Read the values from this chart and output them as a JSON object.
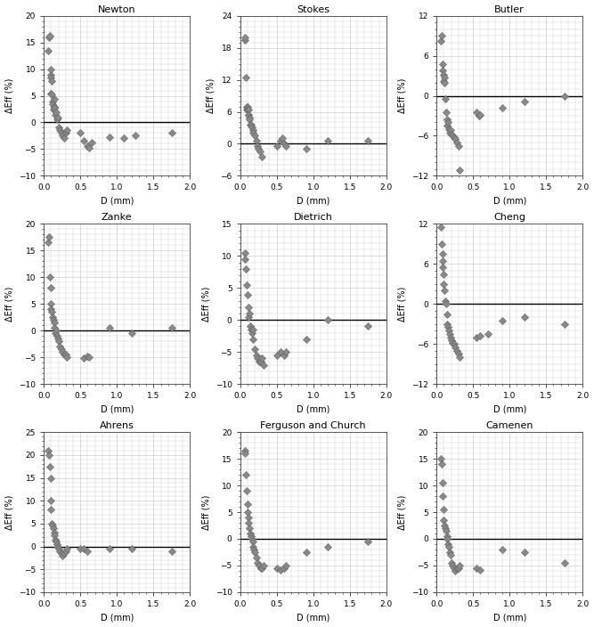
{
  "subplots": [
    {
      "title": "Newton",
      "ylim": [
        -10,
        20
      ],
      "yticks": [
        -10,
        -5,
        0,
        5,
        10,
        15,
        20
      ],
      "x": [
        0.06,
        0.07,
        0.08,
        0.09,
        0.09,
        0.1,
        0.1,
        0.11,
        0.11,
        0.12,
        0.12,
        0.13,
        0.14,
        0.15,
        0.15,
        0.16,
        0.17,
        0.18,
        0.19,
        0.2,
        0.22,
        0.24,
        0.26,
        0.28,
        0.3,
        0.32,
        0.5,
        0.55,
        0.6,
        0.62,
        0.65,
        0.9,
        1.1,
        1.25,
        1.75
      ],
      "y": [
        13.5,
        16.0,
        16.3,
        9.0,
        10.0,
        8.5,
        5.5,
        5.3,
        7.8,
        4.0,
        3.5,
        2.5,
        3.0,
        2.8,
        4.5,
        1.5,
        2.0,
        0.5,
        1.0,
        -1.0,
        -1.5,
        -2.0,
        -2.5,
        -3.0,
        -2.0,
        -1.5,
        -2.0,
        -3.5,
        -4.5,
        -4.8,
        -3.8,
        -2.8,
        -3.0,
        -2.5,
        -2.0
      ]
    },
    {
      "title": "Stokes",
      "ylim": [
        -6,
        24
      ],
      "yticks": [
        -6,
        0,
        6,
        12,
        18,
        24
      ],
      "x": [
        0.06,
        0.07,
        0.08,
        0.09,
        0.09,
        0.1,
        0.1,
        0.11,
        0.11,
        0.12,
        0.13,
        0.13,
        0.14,
        0.15,
        0.16,
        0.17,
        0.18,
        0.2,
        0.22,
        0.24,
        0.25,
        0.27,
        0.3,
        0.5,
        0.55,
        0.58,
        0.6,
        0.62,
        0.9,
        1.2,
        1.75
      ],
      "y": [
        19.5,
        20.0,
        12.5,
        7.0,
        6.5,
        7.0,
        6.5,
        6.5,
        5.5,
        5.5,
        5.0,
        4.5,
        3.5,
        3.5,
        3.0,
        2.5,
        2.0,
        1.5,
        0.5,
        -0.5,
        -1.0,
        -1.5,
        -2.5,
        -0.5,
        0.5,
        1.0,
        0.0,
        -0.5,
        -1.0,
        0.5,
        0.5
      ]
    },
    {
      "title": "Butler",
      "ylim": [
        -12,
        12
      ],
      "yticks": [
        -12,
        -6,
        0,
        6,
        12
      ],
      "x": [
        0.06,
        0.07,
        0.08,
        0.09,
        0.1,
        0.1,
        0.11,
        0.11,
        0.12,
        0.13,
        0.14,
        0.15,
        0.16,
        0.17,
        0.18,
        0.19,
        0.2,
        0.22,
        0.24,
        0.26,
        0.28,
        0.3,
        0.32,
        0.55,
        0.58,
        0.6,
        0.9,
        1.2,
        1.75
      ],
      "y": [
        8.2,
        9.0,
        4.8,
        3.8,
        2.2,
        3.2,
        2.8,
        2.0,
        -0.5,
        -2.5,
        -3.5,
        -4.5,
        -4.0,
        -5.0,
        -5.5,
        -5.2,
        -5.8,
        -6.0,
        -6.2,
        -6.5,
        -7.0,
        -7.5,
        -11.2,
        -2.5,
        -3.0,
        -2.8,
        -1.8,
        -0.8,
        0.0
      ]
    },
    {
      "title": "Zanke",
      "ylim": [
        -10,
        20
      ],
      "yticks": [
        -10,
        -5,
        0,
        5,
        10,
        15,
        20
      ],
      "x": [
        0.06,
        0.07,
        0.08,
        0.09,
        0.1,
        0.1,
        0.11,
        0.12,
        0.13,
        0.14,
        0.15,
        0.16,
        0.17,
        0.18,
        0.19,
        0.2,
        0.22,
        0.24,
        0.26,
        0.28,
        0.3,
        0.32,
        0.55,
        0.6,
        0.62,
        0.9,
        1.2,
        1.75
      ],
      "y": [
        16.5,
        17.5,
        10.0,
        8.0,
        5.0,
        4.0,
        3.5,
        2.5,
        2.0,
        1.5,
        0.5,
        -0.5,
        0.0,
        -1.0,
        -1.5,
        -2.0,
        -3.0,
        -3.5,
        -4.0,
        -4.5,
        -4.5,
        -5.0,
        -5.2,
        -4.8,
        -5.0,
        0.5,
        -0.5,
        0.5
      ]
    },
    {
      "title": "Dietrich",
      "ylim": [
        -10,
        15
      ],
      "yticks": [
        -10,
        -5,
        0,
        5,
        10,
        15
      ],
      "x": [
        0.06,
        0.07,
        0.08,
        0.09,
        0.1,
        0.11,
        0.12,
        0.13,
        0.14,
        0.15,
        0.16,
        0.17,
        0.18,
        0.2,
        0.22,
        0.24,
        0.26,
        0.28,
        0.3,
        0.32,
        0.5,
        0.55,
        0.6,
        0.62,
        0.9,
        1.2,
        1.75
      ],
      "y": [
        10.5,
        9.5,
        8.0,
        5.5,
        4.0,
        2.0,
        0.5,
        1.0,
        -1.0,
        -1.5,
        -2.0,
        -1.5,
        -3.0,
        -4.5,
        -5.5,
        -6.0,
        -6.5,
        -6.5,
        -6.0,
        -7.0,
        -5.5,
        -5.0,
        -5.5,
        -5.0,
        -3.0,
        0.0,
        -1.0
      ]
    },
    {
      "title": "Cheng",
      "ylim": [
        -12,
        12
      ],
      "yticks": [
        -12,
        -6,
        0,
        6,
        12
      ],
      "x": [
        0.06,
        0.07,
        0.08,
        0.09,
        0.09,
        0.1,
        0.1,
        0.11,
        0.12,
        0.13,
        0.14,
        0.15,
        0.16,
        0.17,
        0.18,
        0.19,
        0.2,
        0.22,
        0.24,
        0.26,
        0.28,
        0.3,
        0.32,
        0.55,
        0.6,
        0.7,
        0.9,
        1.2,
        1.75
      ],
      "y": [
        11.5,
        9.0,
        7.5,
        6.5,
        5.5,
        4.5,
        3.0,
        2.0,
        0.5,
        0.0,
        -1.5,
        -3.0,
        -3.5,
        -4.0,
        -4.5,
        -5.0,
        -5.5,
        -5.8,
        -6.0,
        -6.5,
        -7.0,
        -7.5,
        -8.0,
        -5.0,
        -4.8,
        -4.5,
        -2.5,
        -2.0,
        -3.0
      ]
    },
    {
      "title": "Ahrens",
      "ylim": [
        -10,
        25
      ],
      "yticks": [
        -10,
        -5,
        0,
        5,
        10,
        15,
        20,
        25
      ],
      "x": [
        0.06,
        0.07,
        0.08,
        0.09,
        0.1,
        0.1,
        0.11,
        0.12,
        0.13,
        0.14,
        0.15,
        0.16,
        0.17,
        0.18,
        0.19,
        0.2,
        0.22,
        0.24,
        0.26,
        0.28,
        0.3,
        0.32,
        0.5,
        0.55,
        0.6,
        0.9,
        1.2,
        1.75
      ],
      "y": [
        21.0,
        20.0,
        17.5,
        15.0,
        10.0,
        8.0,
        5.0,
        4.5,
        4.0,
        3.0,
        2.5,
        1.5,
        1.0,
        0.5,
        0.0,
        -0.5,
        -1.0,
        -1.5,
        -2.0,
        -1.5,
        -1.0,
        -0.5,
        -0.5,
        -0.5,
        -1.0,
        -0.5,
        -0.5,
        -1.0
      ]
    },
    {
      "title": "Ferguson and Church",
      "ylim": [
        -10,
        20
      ],
      "yticks": [
        -10,
        -5,
        0,
        5,
        10,
        15,
        20
      ],
      "x": [
        0.06,
        0.07,
        0.08,
        0.09,
        0.1,
        0.1,
        0.11,
        0.12,
        0.13,
        0.14,
        0.15,
        0.16,
        0.17,
        0.18,
        0.19,
        0.2,
        0.22,
        0.24,
        0.26,
        0.28,
        0.3,
        0.32,
        0.5,
        0.55,
        0.6,
        0.62,
        0.9,
        1.2,
        1.75
      ],
      "y": [
        16.5,
        16.0,
        12.0,
        9.0,
        6.5,
        5.0,
        4.0,
        3.0,
        2.0,
        1.0,
        0.5,
        0.0,
        -0.5,
        -1.5,
        -2.0,
        -2.5,
        -3.5,
        -4.5,
        -5.0,
        -5.5,
        -5.5,
        -5.0,
        -5.5,
        -5.8,
        -5.5,
        -5.0,
        -2.5,
        -1.5,
        -0.5
      ]
    },
    {
      "title": "Camenen",
      "ylim": [
        -10,
        20
      ],
      "yticks": [
        -10,
        -5,
        0,
        5,
        10,
        15,
        20
      ],
      "x": [
        0.06,
        0.07,
        0.08,
        0.09,
        0.1,
        0.1,
        0.11,
        0.12,
        0.13,
        0.14,
        0.15,
        0.16,
        0.17,
        0.18,
        0.19,
        0.2,
        0.22,
        0.24,
        0.26,
        0.28,
        0.3,
        0.32,
        0.55,
        0.6,
        0.9,
        1.2,
        1.75
      ],
      "y": [
        15.0,
        14.0,
        10.5,
        8.0,
        5.5,
        3.5,
        2.5,
        2.0,
        1.5,
        0.5,
        0.0,
        -1.0,
        -1.5,
        -2.5,
        -3.0,
        -4.5,
        -5.0,
        -5.5,
        -6.0,
        -5.5,
        -5.5,
        -5.0,
        -5.5,
        -5.8,
        -2.0,
        -2.5,
        -4.5
      ]
    }
  ],
  "xlim": [
    0,
    2.0
  ],
  "xticks": [
    0.0,
    0.5,
    1.0,
    1.5,
    2.0
  ],
  "xlabel": "D (mm)",
  "ylabel": "ΔEff (%)",
  "marker_color": "#888888",
  "marker_edgecolor": "#555555",
  "marker_size": 18,
  "hline_color": "#000000",
  "grid_color": "#cccccc",
  "background_color": "#ffffff",
  "figure_bgcolor": "#ffffff",
  "title_fontsize": 8,
  "label_fontsize": 7,
  "tick_fontsize": 6.5
}
